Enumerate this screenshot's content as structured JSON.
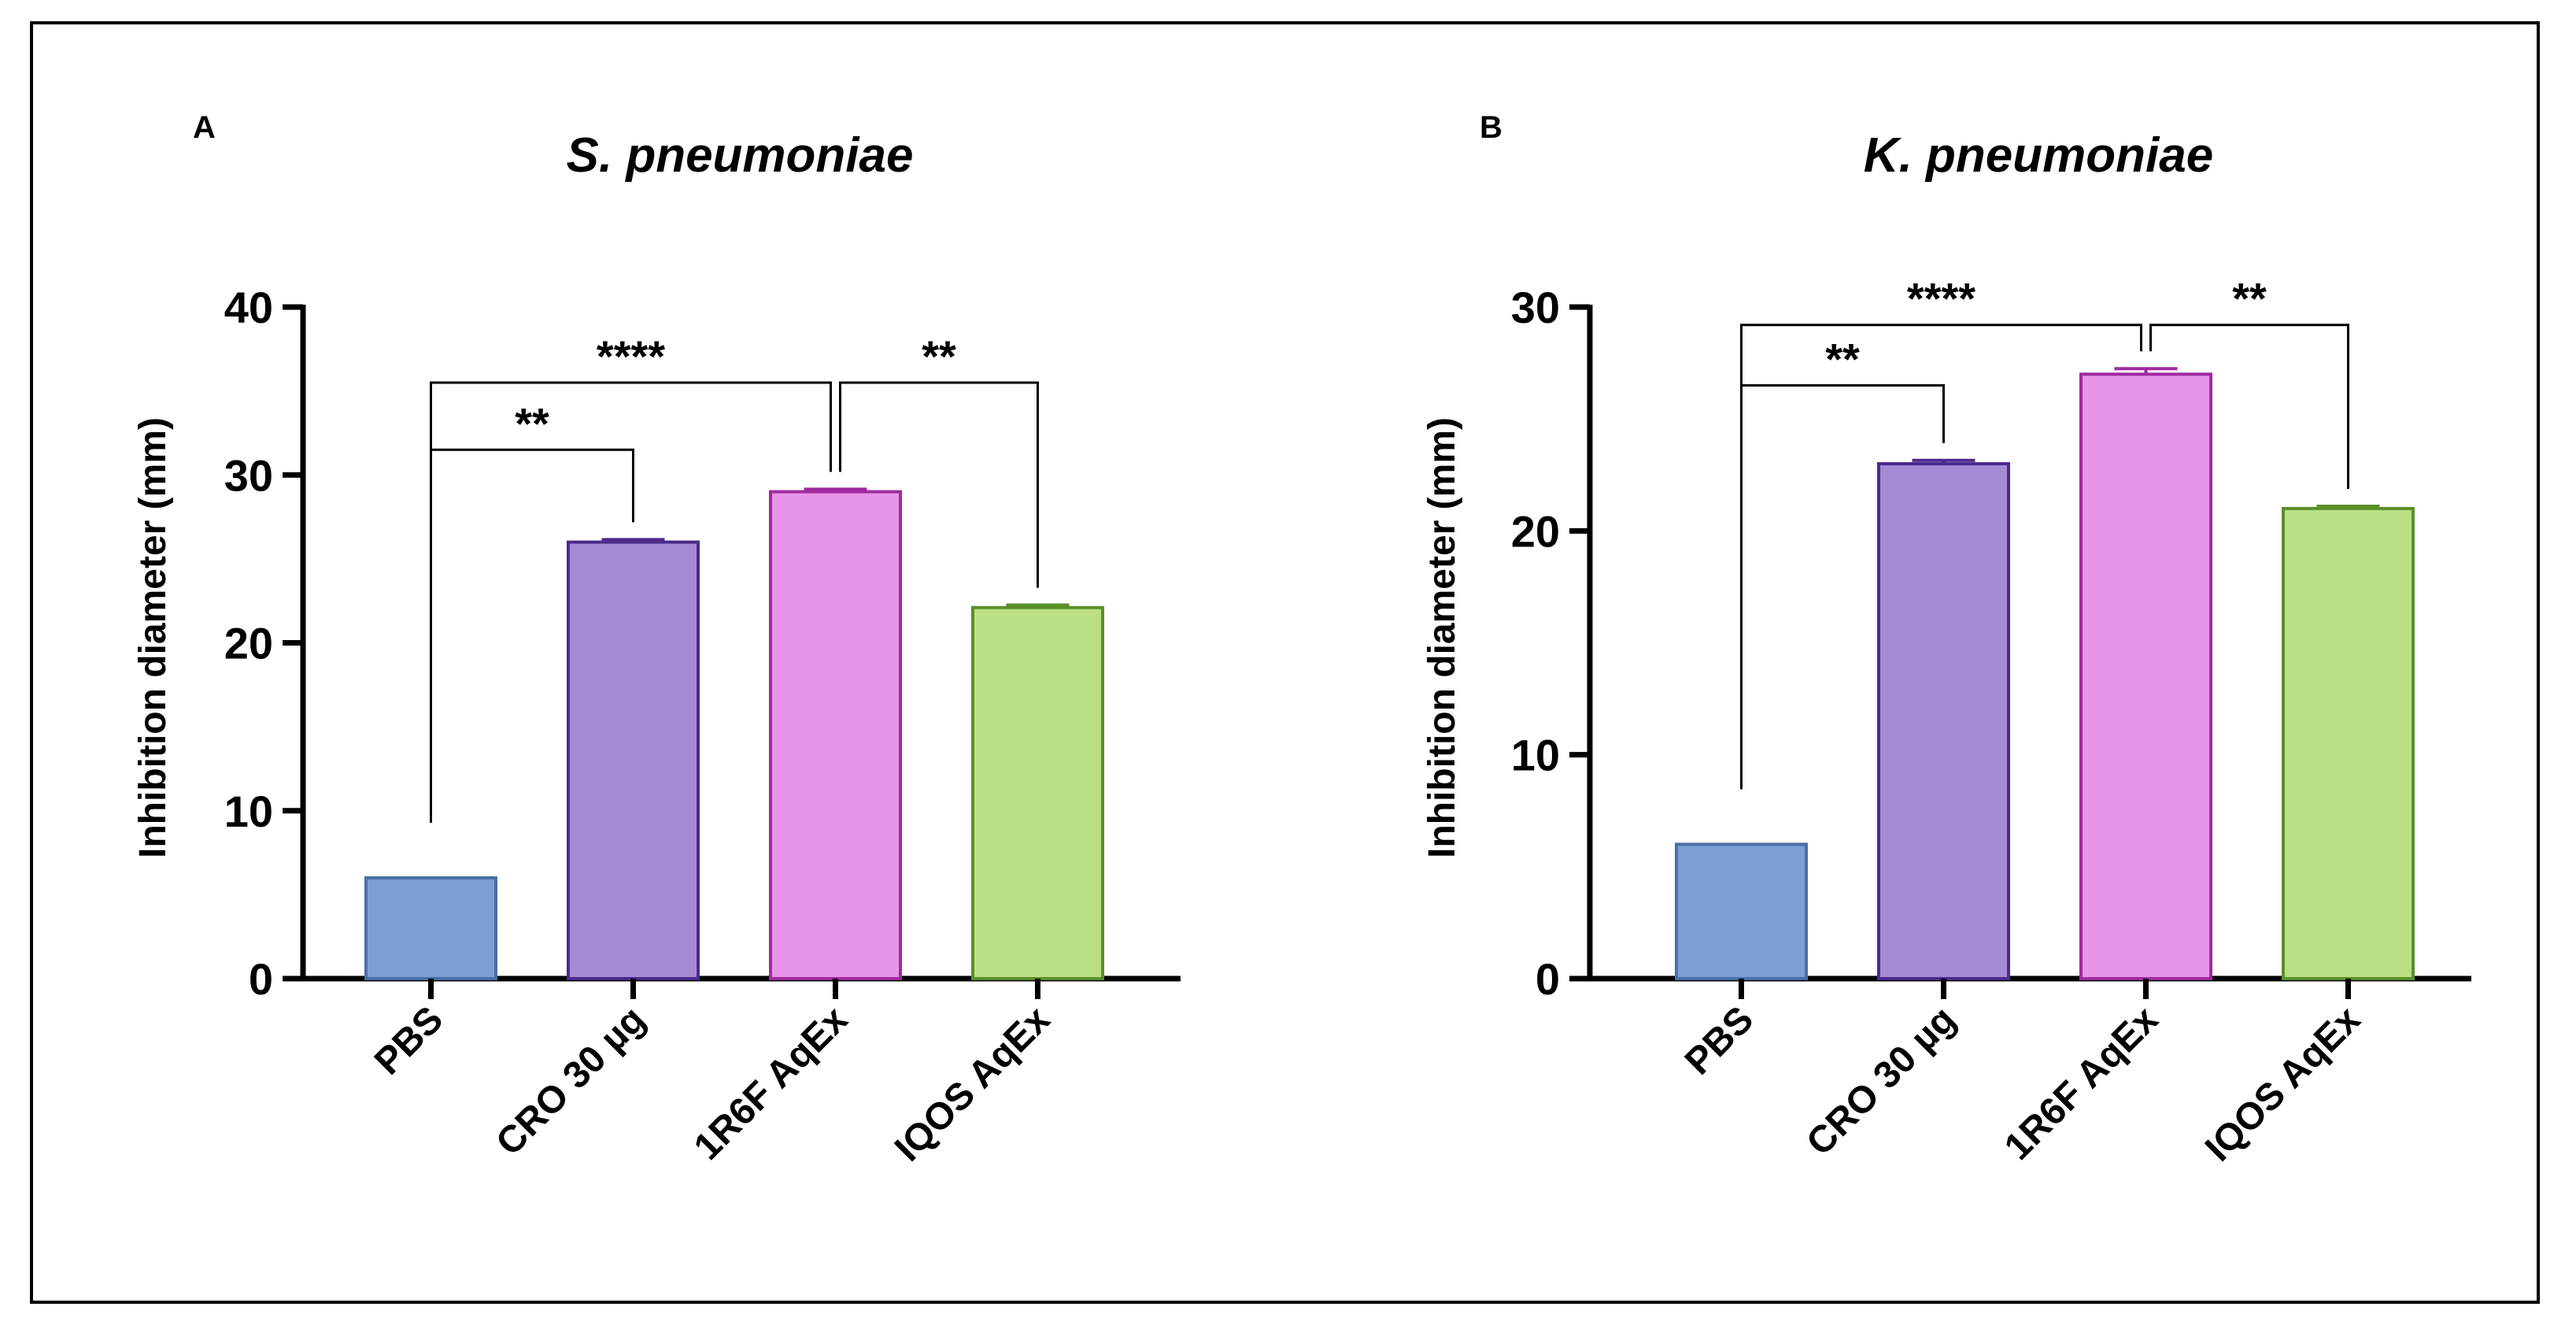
{
  "chart_data": [
    {
      "type": "bar",
      "panel_label": "A",
      "title": "S. pneumoniae",
      "ylabel": "Inhibition diameter (mm)",
      "xlabel": "",
      "ylim": [
        0,
        40
      ],
      "yticks": [
        0,
        10,
        20,
        30,
        40
      ],
      "categories": [
        "PBS",
        "CRO 30 µg",
        "1R6F AqEx",
        "IQOS AqEx"
      ],
      "values": [
        6,
        26,
        29,
        22.1
      ],
      "errors": [
        0,
        0.15,
        0.15,
        0.15
      ],
      "colors": [
        "#7b9fd6",
        "#a58bd4",
        "#e895e8",
        "#bbdf85"
      ],
      "edge_colors": [
        "#4a6fa5",
        "#4b2a8c",
        "#a02aa0",
        "#5a8f2a"
      ],
      "significance": [
        {
          "from": 0,
          "to": 1,
          "label": "**",
          "level": 31.5
        },
        {
          "from": 0,
          "to": 2,
          "label": "****",
          "level": 35.5
        },
        {
          "from": 2,
          "to": 3,
          "label": "**",
          "level": 35.5
        }
      ]
    },
    {
      "type": "bar",
      "panel_label": "B",
      "title": "K. pneumoniae",
      "ylabel": "Inhibition diameter (mm)",
      "xlabel": "",
      "ylim": [
        0,
        30
      ],
      "yticks": [
        0,
        10,
        20,
        30
      ],
      "categories": [
        "PBS",
        "CRO 30 µg",
        "1R6F AqEx",
        "IQOS AqEx"
      ],
      "values": [
        6,
        23,
        27,
        21
      ],
      "errors": [
        0,
        0.15,
        0.25,
        0.1
      ],
      "colors": [
        "#7b9fd6",
        "#a58bd4",
        "#e895e8",
        "#bbdf85"
      ],
      "edge_colors": [
        "#4a6fa5",
        "#4b2a8c",
        "#a02aa0",
        "#5a8f2a"
      ],
      "significance": [
        {
          "from": 0,
          "to": 1,
          "label": "**",
          "level": 26.5
        },
        {
          "from": 0,
          "to": 2,
          "label": "****",
          "level": 29.2
        },
        {
          "from": 2,
          "to": 3,
          "label": "**",
          "level": 29.2
        }
      ]
    }
  ]
}
